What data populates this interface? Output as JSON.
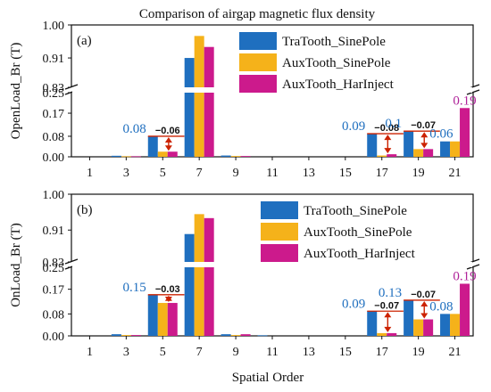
{
  "chart_data": {
    "title": "Comparison of airgap magnetic flux density",
    "xlabel": "Spatial Order",
    "categories": [
      "1",
      "3",
      "5",
      "7",
      "9",
      "11",
      "13",
      "15",
      "17",
      "19",
      "21"
    ],
    "colors": {
      "TraTooth_SinePole": "#1f6fbf",
      "AuxTooth_SinePole": "#f5b21a",
      "AuxTooth_HarInject": "#cc1a8c",
      "arrow": "#cc2200",
      "blue_text": "#1f6fbf",
      "magenta_text": "#b0239a"
    },
    "charts": [
      {
        "panel": "(a)",
        "type": "bar",
        "ylabel": "OpenLoad_Br (T)",
        "y_break": [
          0.25,
          0.83
        ],
        "ylim": [
          0,
          1.0
        ],
        "yticks": [
          "0.00",
          "0.08",
          "0.17",
          "0.25",
          "0.83",
          "0.91",
          "1.00"
        ],
        "legend_position": "top-right",
        "series": [
          {
            "name": "TraTooth_SinePole",
            "values": [
              0,
              0.004,
              0.08,
              0.91,
              0.005,
              0,
              0,
              0,
              0.09,
              0.1,
              0.06
            ]
          },
          {
            "name": "AuxTooth_SinePole",
            "values": [
              0,
              0.002,
              0.02,
              0.97,
              0.003,
              0,
              0,
              0,
              0.005,
              0.03,
              0.06
            ]
          },
          {
            "name": "AuxTooth_HarInject",
            "values": [
              0,
              0.002,
              0.02,
              0.94,
              0.003,
              0,
              0,
              0,
              0.01,
              0.03,
              0.19
            ]
          }
        ],
        "annotations": [
          {
            "category": "5",
            "value_label": "0.08",
            "diff_label": "−0.06"
          },
          {
            "category": "17",
            "value_label": "0.09",
            "diff_label": "−0.08"
          },
          {
            "category": "19",
            "value_label": "0.1",
            "diff_label": "−0.07"
          },
          {
            "category": "21",
            "value_label": "0.06",
            "top_label": "0.19"
          }
        ]
      },
      {
        "panel": "(b)",
        "type": "bar",
        "ylabel": "OnLoad_Br (T)",
        "y_break": [
          0.25,
          0.83
        ],
        "ylim": [
          0,
          1.0
        ],
        "yticks": [
          "0.00",
          "0.08",
          "0.17",
          "0.25",
          "0.83",
          "0.91",
          "1.00"
        ],
        "legend_position": "top-right",
        "series": [
          {
            "name": "TraTooth_SinePole",
            "values": [
              0,
              0.006,
              0.15,
              0.9,
              0.006,
              0.002,
              0,
              0,
              0.09,
              0.13,
              0.08
            ]
          },
          {
            "name": "AuxTooth_SinePole",
            "values": [
              0,
              0.003,
              0.12,
              0.95,
              0.003,
              0,
              0,
              0,
              0.01,
              0.06,
              0.08
            ]
          },
          {
            "name": "AuxTooth_HarInject",
            "values": [
              0,
              0.003,
              0.12,
              0.94,
              0.006,
              0,
              0,
              0,
              0.01,
              0.06,
              0.19
            ]
          }
        ],
        "annotations": [
          {
            "category": "5",
            "value_label": "0.15",
            "diff_label": "−0.03"
          },
          {
            "category": "17",
            "value_label": "0.09",
            "diff_label": "−0.07"
          },
          {
            "category": "19",
            "value_label": "0.13",
            "diff_label": "−0.07"
          },
          {
            "category": "21",
            "value_label": "0.08",
            "top_label": "0.19"
          }
        ]
      }
    ]
  }
}
